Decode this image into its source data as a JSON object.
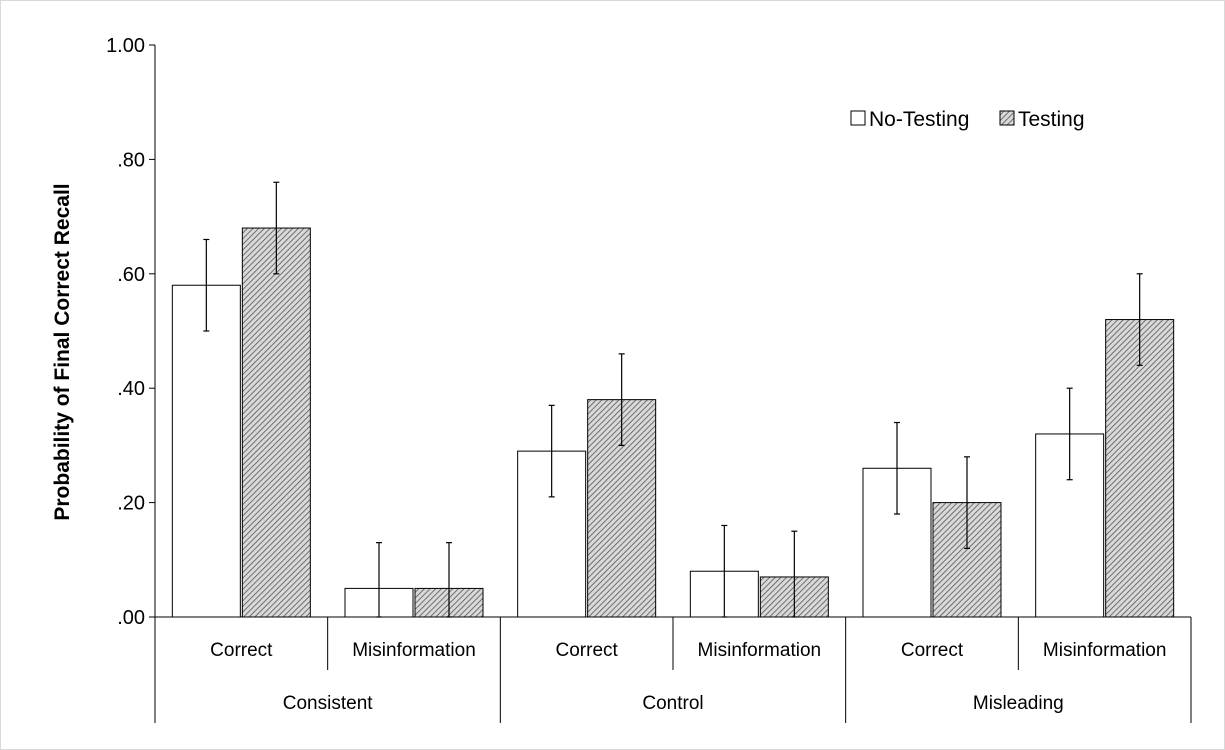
{
  "chart_data": {
    "type": "bar",
    "ylabel": "Probability of Final Correct Recall",
    "ylim": [
      0,
      1.0
    ],
    "yticks": [
      0,
      0.2,
      0.4,
      0.6,
      0.8,
      1.0
    ],
    "ytick_labels": [
      ".00",
      ".20",
      ".40",
      ".60",
      ".80",
      "1.00"
    ],
    "groups": [
      {
        "label": "Consistent",
        "categories": [
          "Correct",
          "Misinformation"
        ]
      },
      {
        "label": "Control",
        "categories": [
          "Correct",
          "Misinformation"
        ]
      },
      {
        "label": "Misleading",
        "categories": [
          "Correct",
          "Misinformation"
        ]
      }
    ],
    "categories": [
      "Consistent - Correct",
      "Consistent - Misinformation",
      "Control - Correct",
      "Control - Misinformation",
      "Misleading - Correct",
      "Misleading - Misinformation"
    ],
    "series": [
      {
        "name": "No-Testing",
        "fill": "#ffffff",
        "values": [
          0.58,
          0.05,
          0.29,
          0.08,
          0.26,
          0.32
        ],
        "errors": [
          0.08,
          0.08,
          0.08,
          0.08,
          0.08,
          0.08
        ]
      },
      {
        "name": "Testing",
        "fill": "hatched",
        "values": [
          0.68,
          0.05,
          0.38,
          0.07,
          0.2,
          0.52
        ],
        "errors": [
          0.08,
          0.08,
          0.08,
          0.08,
          0.08,
          0.08
        ]
      }
    ],
    "legend_position": "top-right",
    "grid": false
  }
}
